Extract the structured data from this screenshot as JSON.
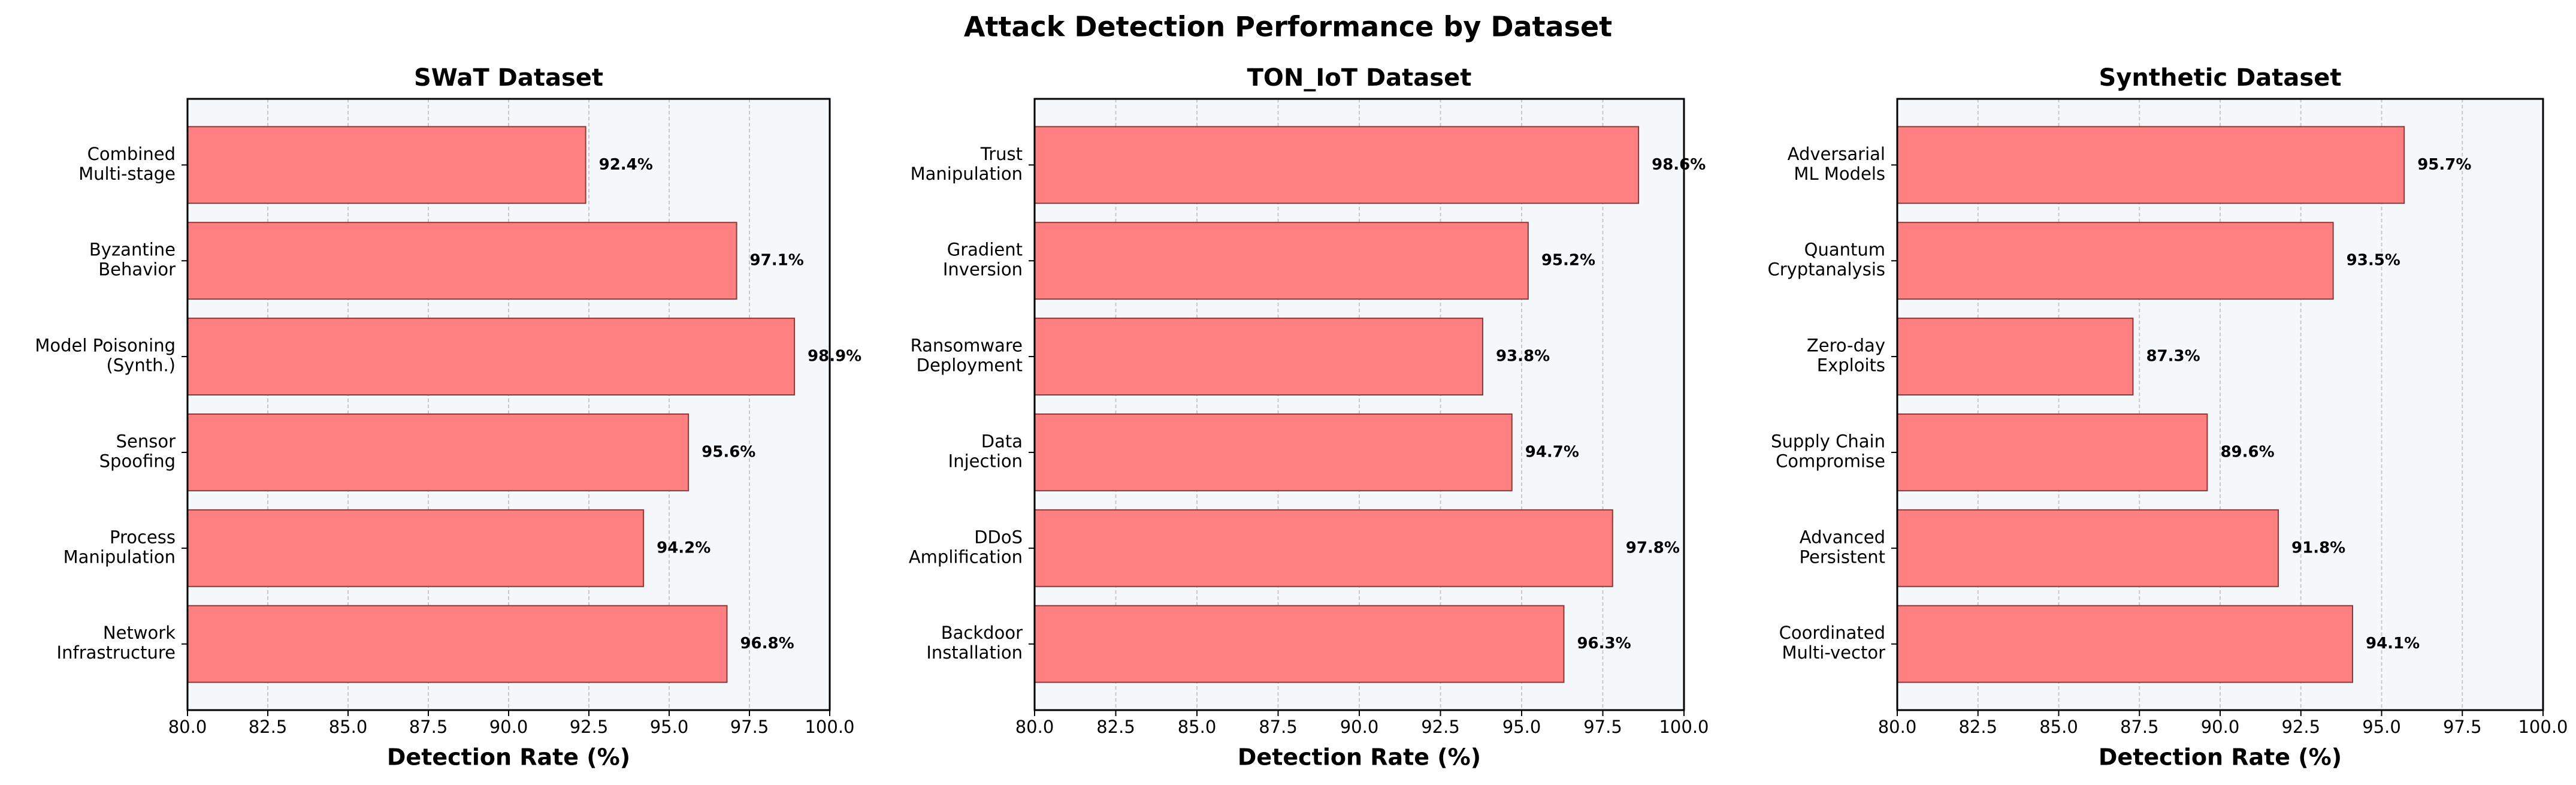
{
  "title": "Attack Detection Performance by Dataset",
  "chart_data": [
    {
      "type": "barh",
      "title": "SWaT Dataset",
      "x_label": "Detection Rate (%)",
      "categories": [
        "Combined\nMulti-stage",
        "Byzantine\nBehavior",
        "Model Poisoning\n(Synth.)",
        "Sensor\nSpoofing",
        "Process\nManipulation",
        "Network\nInfrastructure"
      ],
      "values": [
        92.4,
        97.1,
        98.9,
        95.6,
        94.2,
        96.8
      ],
      "value_labels": [
        "92.4%",
        "97.1%",
        "98.9%",
        "95.6%",
        "94.2%",
        "96.8%"
      ],
      "color": "#ff8080",
      "xlim": [
        80,
        100
      ],
      "xticks": [
        {
          "value": 80,
          "label": "80.0"
        },
        82.5,
        {
          "value": 85,
          "label": "85.0"
        },
        87.5,
        {
          "value": 90,
          "label": "90.0"
        },
        92.5,
        {
          "value": 95,
          "label": "95.0"
        },
        97.5,
        {
          "value": 100,
          "label": "100.0"
        }
      ],
      "grid": true
    },
    {
      "type": "barh",
      "title": "TON_IoT Dataset",
      "x_label": "Detection Rate (%)",
      "categories": [
        "Trust\nManipulation",
        "Gradient\nInversion",
        "Ransomware\nDeployment",
        "Data\nInjection",
        "DDoS\nAmplification",
        "Backdoor\nInstallation"
      ],
      "values": [
        98.6,
        95.2,
        93.8,
        94.7,
        97.8,
        96.3
      ],
      "value_labels": [
        "98.6%",
        "95.2%",
        "93.8%",
        "94.7%",
        "97.8%",
        "96.3%"
      ],
      "color": "#ff8080",
      "xlim": [
        80,
        100
      ],
      "xticks": [
        {
          "value": 80,
          "label": "80.0"
        },
        82.5,
        {
          "value": 85,
          "label": "85.0"
        },
        87.5,
        {
          "value": 90,
          "label": "90.0"
        },
        92.5,
        {
          "value": 95,
          "label": "95.0"
        },
        97.5,
        {
          "value": 100,
          "label": "100.0"
        }
      ],
      "grid": true
    },
    {
      "type": "barh",
      "title": "Synthetic Dataset",
      "x_label": "Detection Rate (%)",
      "categories": [
        "Adversarial\nML Models",
        "Quantum\nCryptanalysis",
        "Zero-day\nExploits",
        "Supply Chain\nCompromise",
        "Advanced\nPersistent",
        "Coordinated\nMulti-vector"
      ],
      "values": [
        95.7,
        93.5,
        87.3,
        89.6,
        91.8,
        94.1
      ],
      "value_labels": [
        "95.7%",
        "93.5%",
        "87.3%",
        "89.6%",
        "91.8%",
        "94.1%"
      ],
      "color": "#ff8080",
      "xlim": [
        80,
        100
      ],
      "xticks": [
        {
          "value": 80,
          "label": "80.0"
        },
        82.5,
        {
          "value": 85,
          "label": "85.0"
        },
        87.5,
        {
          "value": 90,
          "label": "90.0"
        },
        92.5,
        {
          "value": 95,
          "label": "95.0"
        },
        97.5,
        {
          "value": 100,
          "label": "100.0"
        }
      ],
      "grid": true
    }
  ]
}
